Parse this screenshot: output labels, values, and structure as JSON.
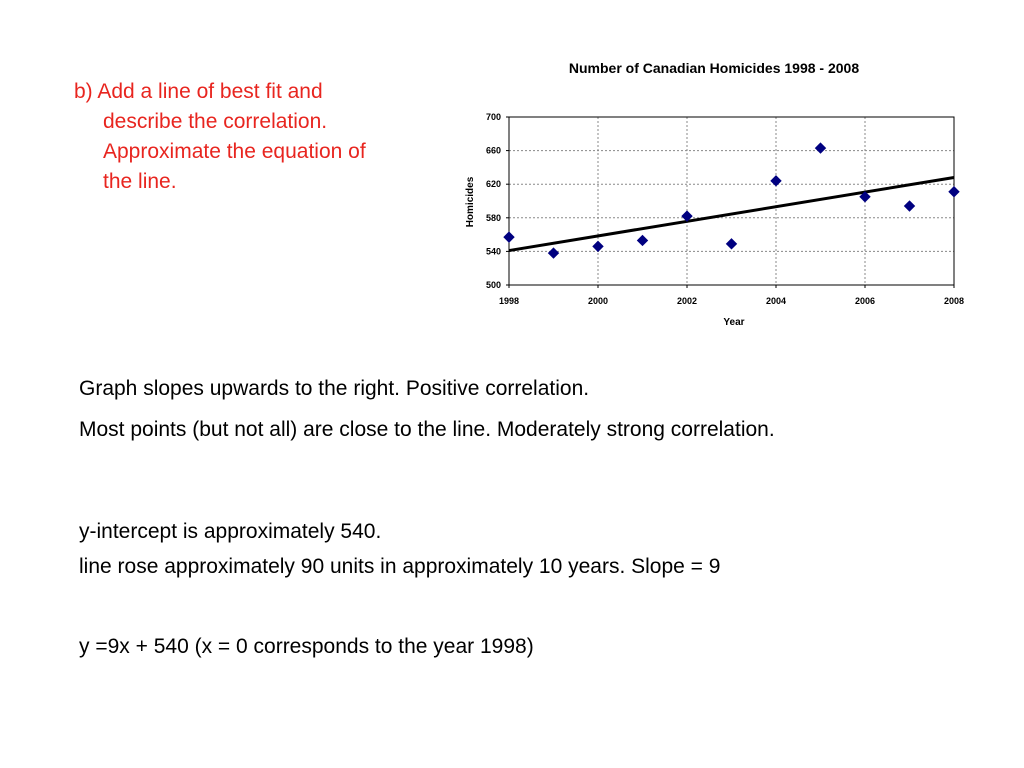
{
  "question": {
    "line1": "b) Add a line of best fit and",
    "line2": "describe the correlation.",
    "line3": "Approximate the equation of",
    "line4": "the line."
  },
  "chart_data": {
    "type": "scatter",
    "title": "Number of Canadian Homicides 1998 - 2008",
    "xlabel": "Year",
    "ylabel": "Homicides",
    "xlim": [
      1998,
      2008
    ],
    "ylim": [
      500,
      700
    ],
    "xticks": [
      "1998",
      "2000",
      "2002",
      "2004",
      "2006",
      "2008"
    ],
    "yticks": [
      "500",
      "540",
      "580",
      "620",
      "660",
      "700"
    ],
    "grid": true,
    "legend": "none",
    "points": [
      {
        "x": 1998,
        "y": 557
      },
      {
        "x": 1999,
        "y": 538
      },
      {
        "x": 2000,
        "y": 546
      },
      {
        "x": 2001,
        "y": 553
      },
      {
        "x": 2002,
        "y": 582
      },
      {
        "x": 2003,
        "y": 549
      },
      {
        "x": 2004,
        "y": 624
      },
      {
        "x": 2005,
        "y": 663
      },
      {
        "x": 2006,
        "y": 605
      },
      {
        "x": 2007,
        "y": 594
      },
      {
        "x": 2008,
        "y": 611
      }
    ],
    "fit_line": {
      "x": [
        1998,
        2008
      ],
      "y": [
        541,
        628
      ]
    },
    "point_color": "#000080",
    "line_color": "#000000"
  },
  "explanation": {
    "line1": "Graph slopes upwards to the right.  Positive correlation.",
    "line2": "Most points (but not all) are close to the line.  Moderately strong correlation.",
    "line3": "y-intercept is approximately 540.",
    "line4": "line rose approximately 90 units in approximately 10 years.  Slope = 9",
    "line5": "y =9x + 540   (x = 0 corresponds to the year 1998)"
  }
}
